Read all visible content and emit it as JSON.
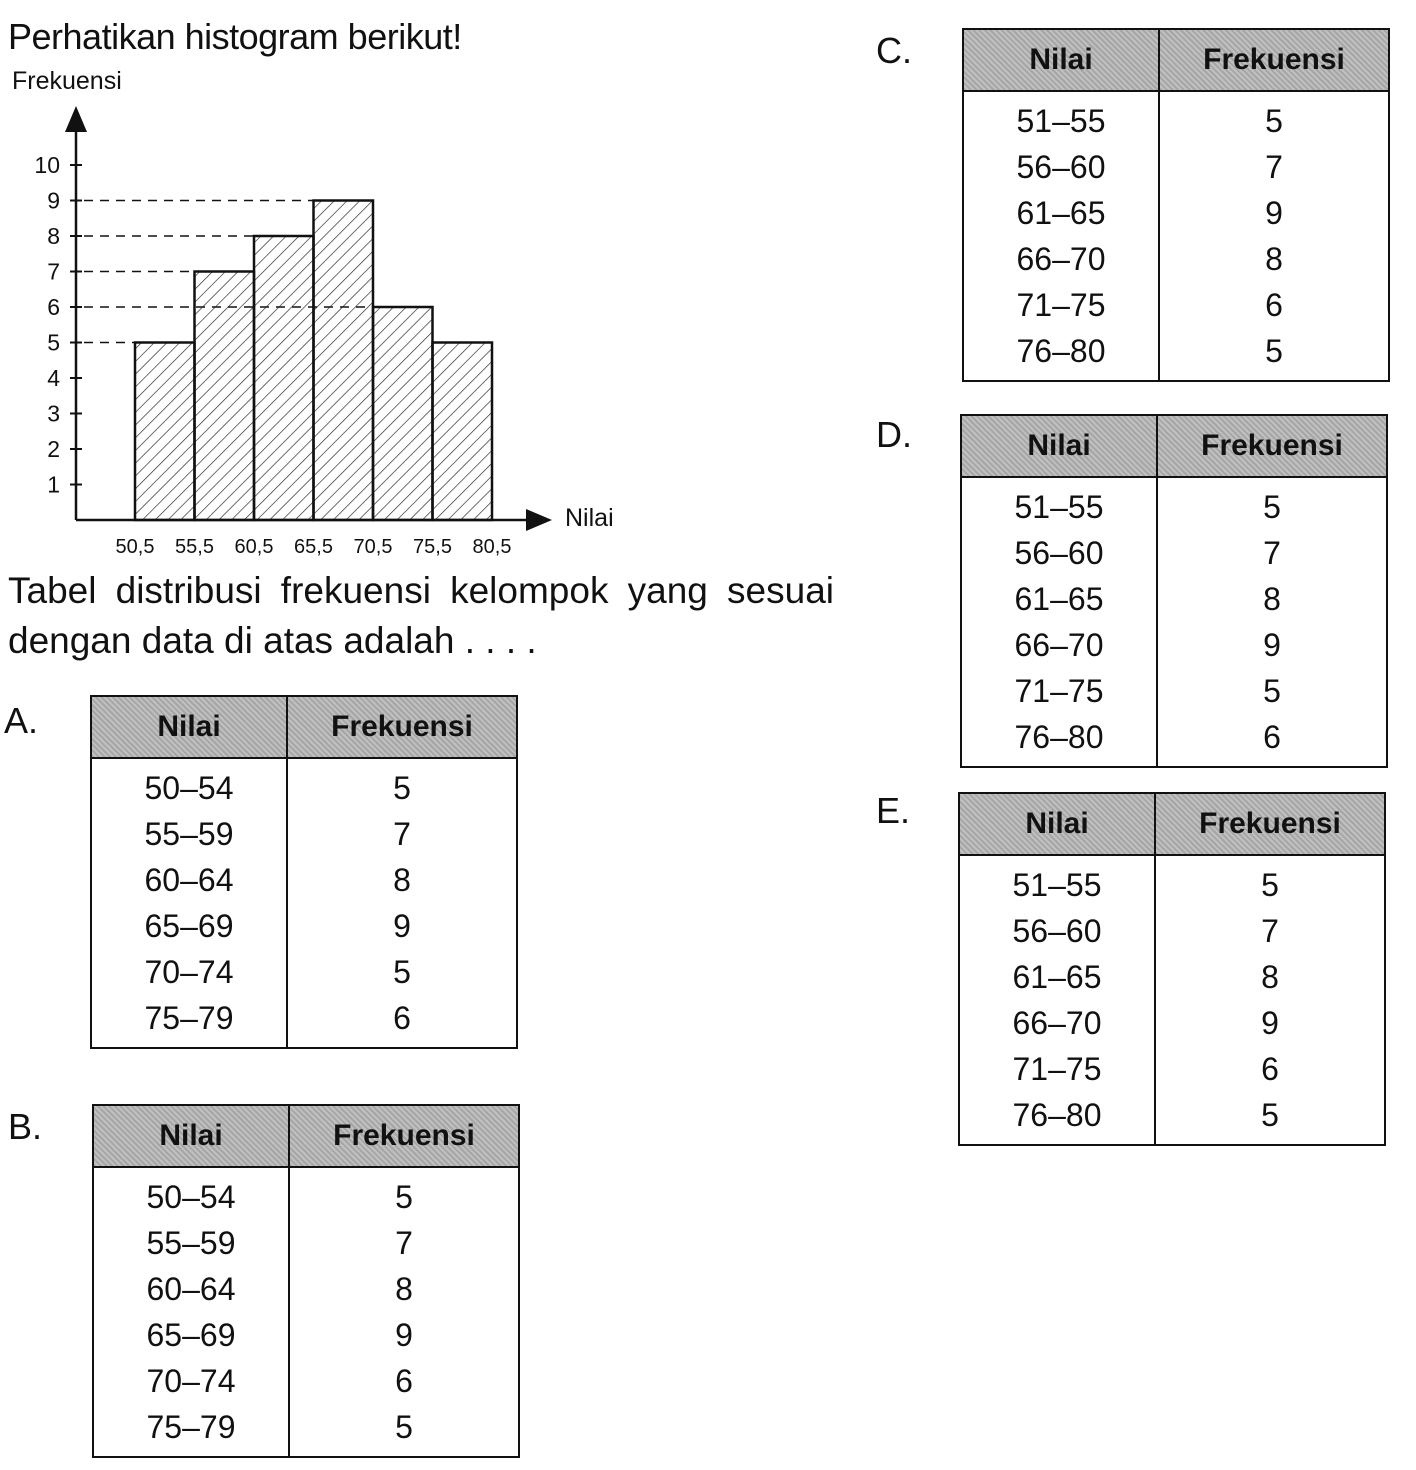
{
  "intro": "Perhatikan histogram berikut!",
  "question": "Tabel distribusi frekuensi kelompok yang sesuai dengan data di atas adalah . . . .",
  "chart_data": {
    "type": "bar",
    "xlabel": "Nilai",
    "ylabel": "Frekuensi",
    "x_ticks": [
      "50,5",
      "55,5",
      "60,5",
      "65,5",
      "70,5",
      "75,5",
      "80,5"
    ],
    "y_ticks": [
      "1",
      "2",
      "3",
      "4",
      "5",
      "6",
      "7",
      "8",
      "9",
      "10"
    ],
    "bin_edges": [
      50.5,
      55.5,
      60.5,
      65.5,
      70.5,
      75.5,
      80.5
    ],
    "values": [
      5,
      7,
      8,
      9,
      6,
      5
    ],
    "ylim": [
      0,
      11
    ],
    "grid": false,
    "fill": "diagonal hatch"
  },
  "col_headers": {
    "nilai": "Nilai",
    "frekuensi": "Frekuensi"
  },
  "options": [
    {
      "label": "A.",
      "rows": [
        [
          "50–54",
          "5"
        ],
        [
          "55–59",
          "7"
        ],
        [
          "60–64",
          "8"
        ],
        [
          "65–69",
          "9"
        ],
        [
          "70–74",
          "5"
        ],
        [
          "75–79",
          "6"
        ]
      ]
    },
    {
      "label": "B.",
      "rows": [
        [
          "50–54",
          "5"
        ],
        [
          "55–59",
          "7"
        ],
        [
          "60–64",
          "8"
        ],
        [
          "65–69",
          "9"
        ],
        [
          "70–74",
          "6"
        ],
        [
          "75–79",
          "5"
        ]
      ]
    },
    {
      "label": "C.",
      "rows": [
        [
          "51–55",
          "5"
        ],
        [
          "56–60",
          "7"
        ],
        [
          "61–65",
          "9"
        ],
        [
          "66–70",
          "8"
        ],
        [
          "71–75",
          "6"
        ],
        [
          "76–80",
          "5"
        ]
      ]
    },
    {
      "label": "D.",
      "rows": [
        [
          "51–55",
          "5"
        ],
        [
          "56–60",
          "7"
        ],
        [
          "61–65",
          "8"
        ],
        [
          "66–70",
          "9"
        ],
        [
          "71–75",
          "5"
        ],
        [
          "76–80",
          "6"
        ]
      ]
    },
    {
      "label": "E.",
      "rows": [
        [
          "51–55",
          "5"
        ],
        [
          "56–60",
          "7"
        ],
        [
          "61–65",
          "8"
        ],
        [
          "66–70",
          "9"
        ],
        [
          "71–75",
          "6"
        ],
        [
          "76–80",
          "5"
        ]
      ]
    }
  ]
}
